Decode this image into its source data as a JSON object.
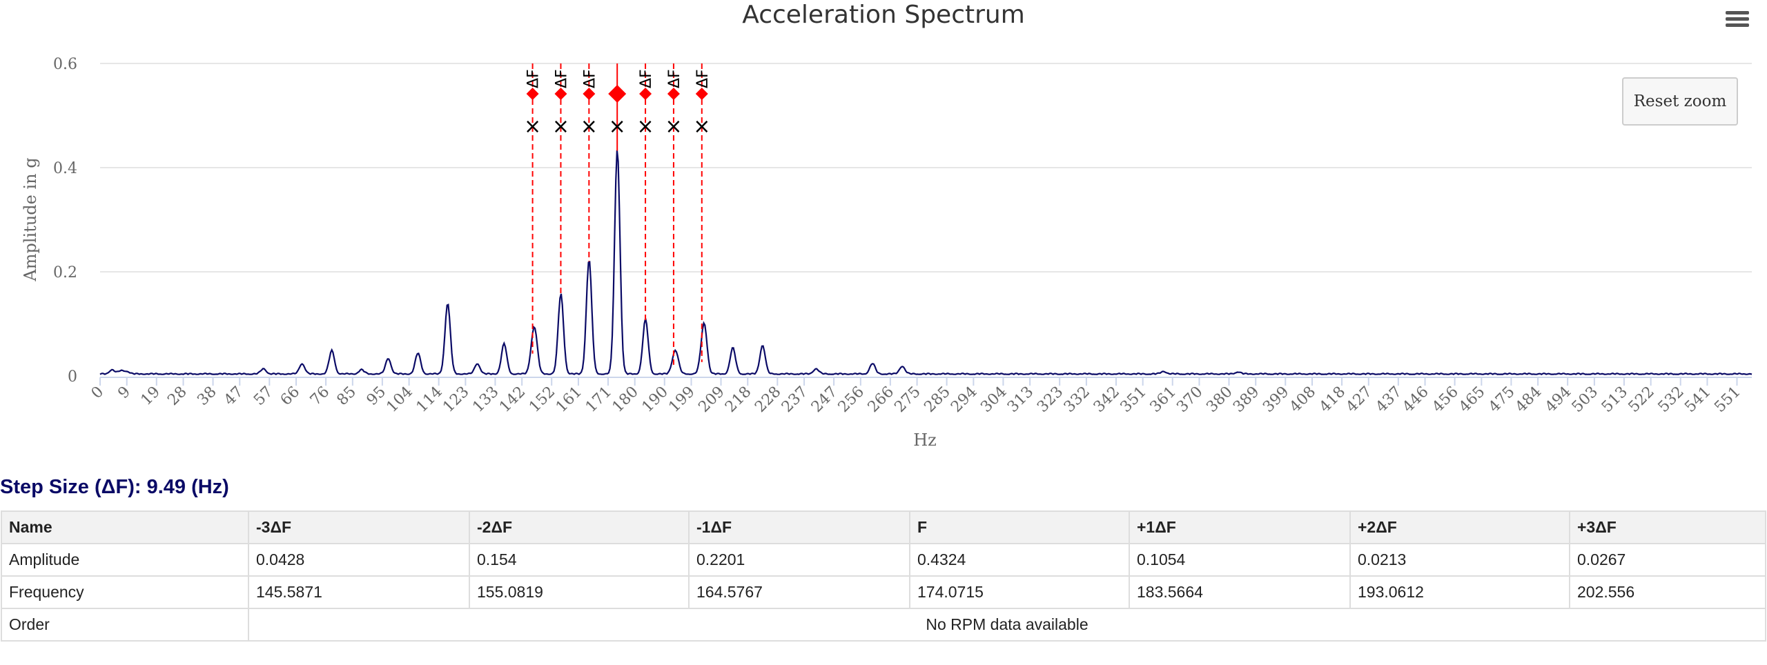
{
  "chart_data": {
    "type": "line",
    "title": "Acceleration Spectrum",
    "xlabel": "Hz",
    "ylabel": "Amplitude in g",
    "xlim": [
      0,
      556
    ],
    "ylim": [
      0,
      0.6
    ],
    "yticks": [
      0,
      0.2,
      0.4,
      0.6
    ],
    "xticks": [
      0,
      9,
      19,
      28,
      38,
      47,
      57,
      66,
      76,
      85,
      95,
      104,
      114,
      123,
      133,
      142,
      152,
      161,
      171,
      180,
      190,
      199,
      209,
      218,
      228,
      237,
      247,
      256,
      266,
      275,
      285,
      294,
      304,
      313,
      323,
      332,
      342,
      351,
      361,
      370,
      380,
      389,
      399,
      408,
      418,
      427,
      437,
      446,
      456,
      465,
      475,
      484,
      494,
      503,
      513,
      522,
      532,
      541,
      551
    ],
    "grid": true,
    "series_color": "#0a0a66",
    "marker_color": "#ff0000",
    "peaks": [
      [
        4,
        0.008
      ],
      [
        7,
        0.006
      ],
      [
        9,
        0.005
      ],
      [
        55,
        0.01
      ],
      [
        68,
        0.02
      ],
      [
        78,
        0.045
      ],
      [
        88,
        0.008
      ],
      [
        97,
        0.03
      ],
      [
        107,
        0.04
      ],
      [
        117,
        0.136
      ],
      [
        127,
        0.02
      ],
      [
        136,
        0.058
      ],
      [
        145.6,
        0.0428
      ],
      [
        146.5,
        0.06
      ],
      [
        155.1,
        0.154
      ],
      [
        164.6,
        0.2201
      ],
      [
        174.1,
        0.4324
      ],
      [
        183.6,
        0.1054
      ],
      [
        193.1,
        0.0213
      ],
      [
        194,
        0.03
      ],
      [
        202.6,
        0.0267
      ],
      [
        203.5,
        0.08
      ],
      [
        213,
        0.05
      ],
      [
        223,
        0.055
      ],
      [
        241,
        0.01
      ],
      [
        260,
        0.02
      ],
      [
        270,
        0.015
      ],
      [
        358,
        0.005
      ],
      [
        383,
        0.004
      ]
    ],
    "markers": [
      {
        "label": "-3ΔF",
        "freq": 145.5871,
        "amp": 0.0428,
        "main": false
      },
      {
        "label": "-2ΔF",
        "freq": 155.0819,
        "amp": 0.154,
        "main": false
      },
      {
        "label": "-1ΔF",
        "freq": 164.5767,
        "amp": 0.2201,
        "main": false
      },
      {
        "label": "F",
        "freq": 174.0715,
        "amp": 0.4324,
        "main": true
      },
      {
        "label": "+1ΔF",
        "freq": 183.5664,
        "amp": 0.1054,
        "main": false
      },
      {
        "label": "+2ΔF",
        "freq": 193.0612,
        "amp": 0.0213,
        "main": false
      },
      {
        "label": "+3ΔF",
        "freq": 202.556,
        "amp": 0.0267,
        "main": false
      }
    ]
  },
  "chart": {
    "reset_zoom_label": "Reset zoom",
    "marker_top_label": "ΔF",
    "cross_symbol": "×"
  },
  "step_size_text": "Step Size (ΔF): 9.49 (Hz)",
  "table": {
    "headers": [
      "Name",
      "-3ΔF",
      "-2ΔF",
      "-1ΔF",
      "F",
      "+1ΔF",
      "+2ΔF",
      "+3ΔF"
    ],
    "amplitude_row": [
      "Amplitude",
      "0.0428",
      "0.154",
      "0.2201",
      "0.4324",
      "0.1054",
      "0.0213",
      "0.0267"
    ],
    "frequency_row": [
      "Frequency",
      "145.5871",
      "155.0819",
      "164.5767",
      "174.0715",
      "183.5664",
      "193.0612",
      "202.556"
    ],
    "order_row": {
      "name": "Order",
      "message": "No RPM data available"
    }
  }
}
